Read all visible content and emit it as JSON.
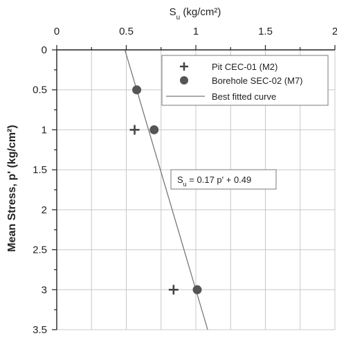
{
  "chart_data": {
    "type": "scatter",
    "x_axis": {
      "label_main": "S",
      "label_sub": "u",
      "label_unit": " (kg/cm²)",
      "position": "top",
      "range": [
        0,
        2
      ],
      "ticks": [
        0,
        0.5,
        1,
        1.5,
        2
      ],
      "tick_labels": [
        "0",
        "0.5",
        "1",
        "1.5",
        "2"
      ]
    },
    "y_axis": {
      "label": "Mean Stress, p' (kg/cm²)",
      "range": [
        0,
        3.5
      ],
      "inverted": true,
      "ticks": [
        0,
        0.5,
        1,
        1.5,
        2,
        2.5,
        3,
        3.5
      ],
      "tick_labels": [
        "0",
        "0.5",
        "1",
        "1.5",
        "2",
        "2.5",
        "3",
        "3.5"
      ]
    },
    "grid": true,
    "series": [
      {
        "name": "Pit CEC-01 (M2)",
        "marker": "plus",
        "points": [
          {
            "x": 0.56,
            "y": 1.0
          },
          {
            "x": 0.84,
            "y": 3.0
          }
        ]
      },
      {
        "name": "Borehole SEC-02 (M7)",
        "marker": "circle",
        "points": [
          {
            "x": 0.575,
            "y": 0.5
          },
          {
            "x": 0.7,
            "y": 1.0
          },
          {
            "x": 1.01,
            "y": 3.0
          }
        ]
      },
      {
        "name": "Best fitted curve",
        "marker": "line",
        "slope": 0.17,
        "intercept": 0.49
      }
    ],
    "legend": {
      "placement": "top-right"
    },
    "annotation": {
      "main": "S",
      "sub": "u",
      "rest": " = 0.17 p' + 0.49"
    }
  }
}
